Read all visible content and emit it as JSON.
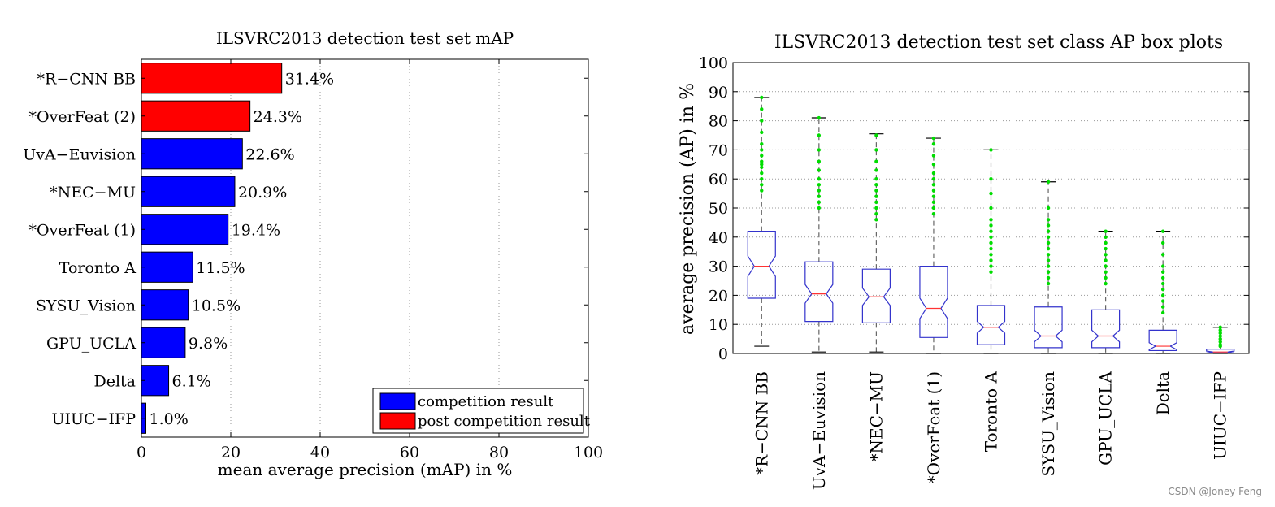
{
  "watermark": "CSDN @Joney Feng",
  "colors": {
    "competition": "#0000ff",
    "post_competition": "#ff0000",
    "box": "#3333cc",
    "median": "#ff3333",
    "whisker": "#666666",
    "outlier": "#00dd00"
  },
  "chart_data": [
    {
      "type": "bar",
      "orientation": "horizontal",
      "title": "ILSVRC2013 detection test set mAP",
      "xlabel": "mean average precision (mAP) in %",
      "ylabel": "",
      "xlim": [
        0,
        100
      ],
      "xticks": [
        0,
        20,
        40,
        60,
        80,
        100
      ],
      "grid": "vertical dotted",
      "categories": [
        "*R−CNN BB",
        "*OverFeat (2)",
        "UvA−Euvision",
        "*NEC−MU",
        "*OverFeat (1)",
        "Toronto A",
        "SYSU_Vision",
        "GPU_UCLA",
        "Delta",
        "UIUC−IFP"
      ],
      "values": [
        31.4,
        24.3,
        22.6,
        20.9,
        19.4,
        11.5,
        10.5,
        9.8,
        6.1,
        1.0
      ],
      "value_labels": [
        "31.4%",
        "24.3%",
        "22.6%",
        "20.9%",
        "19.4%",
        "11.5%",
        "10.5%",
        "9.8%",
        "6.1%",
        "1.0%"
      ],
      "groups": [
        "post",
        "post",
        "competition",
        "competition",
        "competition",
        "competition",
        "competition",
        "competition",
        "competition",
        "competition"
      ],
      "legend": {
        "placement": "bottom-right",
        "entries": [
          {
            "key": "competition",
            "label": "competition result"
          },
          {
            "key": "post",
            "label": "post competition result"
          }
        ]
      }
    },
    {
      "type": "box",
      "title": "ILSVRC2013 detection test set class AP box plots",
      "xlabel": "",
      "ylabel": "average precision (AP) in %",
      "ylim": [
        0,
        100
      ],
      "yticks": [
        0,
        10,
        20,
        30,
        40,
        50,
        60,
        70,
        80,
        90,
        100
      ],
      "grid": "horizontal dotted",
      "categories": [
        "*R−CNN BB",
        "UvA−Euvision",
        "*NEC−MU",
        "*OverFeat (1)",
        "Toronto A",
        "SYSU_Vision",
        "GPU_UCLA",
        "Delta",
        "UIUC−IFP"
      ],
      "boxes": [
        {
          "min": 2.5,
          "q1": 19,
          "median": 30,
          "q3": 42,
          "max": 88,
          "notch": 3.5
        },
        {
          "min": 0.5,
          "q1": 11,
          "median": 20.5,
          "q3": 31.5,
          "max": 81,
          "notch": 3.2
        },
        {
          "min": 0.5,
          "q1": 10.5,
          "median": 19.5,
          "q3": 29,
          "max": 75.5,
          "notch": 3.0
        },
        {
          "min": 0,
          "q1": 5.5,
          "median": 15.5,
          "q3": 30,
          "max": 74,
          "notch": 3.5
        },
        {
          "min": 0,
          "q1": 3,
          "median": 9,
          "q3": 16.5,
          "max": 70,
          "notch": 2.0
        },
        {
          "min": 0,
          "q1": 2,
          "median": 6,
          "q3": 16,
          "max": 59,
          "notch": 2.0
        },
        {
          "min": 0,
          "q1": 2,
          "median": 6,
          "q3": 15,
          "max": 42,
          "notch": 2.0
        },
        {
          "min": 0,
          "q1": 1,
          "median": 2.5,
          "q3": 8,
          "max": 42,
          "notch": 1.2
        },
        {
          "min": 0,
          "q1": 0.2,
          "median": 0.5,
          "q3": 1.5,
          "max": 9,
          "notch": 0.3
        }
      ],
      "outliers": [
        [
          56,
          58,
          60,
          62,
          64,
          65,
          66,
          68,
          70,
          72,
          76,
          80,
          84,
          88
        ],
        [
          50,
          52,
          54,
          56,
          58,
          60,
          63,
          66,
          70,
          75,
          81
        ],
        [
          46,
          48,
          50,
          52,
          54,
          56,
          58,
          60,
          63,
          66,
          70,
          75
        ],
        [
          48,
          50,
          52,
          54,
          56,
          58,
          60,
          62,
          65,
          68,
          72,
          74
        ],
        [
          28,
          30,
          32,
          34,
          36,
          38,
          40,
          42,
          44,
          46,
          50,
          55,
          60,
          70
        ],
        [
          24,
          26,
          28,
          30,
          32,
          34,
          36,
          38,
          40,
          42,
          44,
          46,
          50,
          59
        ],
        [
          24,
          26,
          28,
          30,
          32,
          34,
          36,
          38,
          40,
          42
        ],
        [
          14,
          16,
          18,
          20,
          22,
          24,
          26,
          28,
          30,
          34,
          38,
          42
        ],
        [
          2.5,
          3,
          4,
          5,
          6,
          7,
          8,
          9
        ]
      ]
    }
  ]
}
